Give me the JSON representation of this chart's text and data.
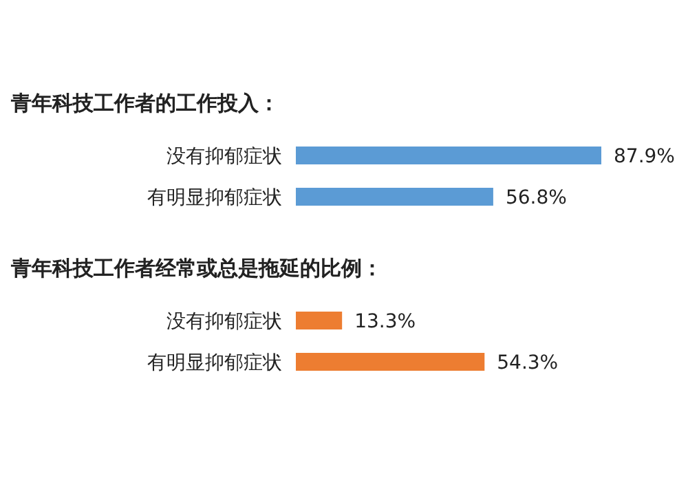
{
  "chart_data": [
    {
      "type": "bar",
      "orientation": "horizontal",
      "title": "青年科技工作者的工作投入：",
      "categories": [
        "没有抑郁症状",
        "有明显抑郁症状"
      ],
      "values": [
        87.9,
        56.8
      ],
      "color": "#5b9bd5",
      "data_labels": true,
      "value_labels": [
        "87.9%",
        "56.8%"
      ]
    },
    {
      "type": "bar",
      "orientation": "horizontal",
      "title": "青年科技工作者经常或总是拖延的比例：",
      "categories": [
        "没有抑郁症状",
        "有明显抑郁症状"
      ],
      "values": [
        13.3,
        54.3
      ],
      "color": "#ed7d31",
      "data_labels": true,
      "value_labels": [
        "13.3%",
        "54.3%"
      ]
    }
  ]
}
